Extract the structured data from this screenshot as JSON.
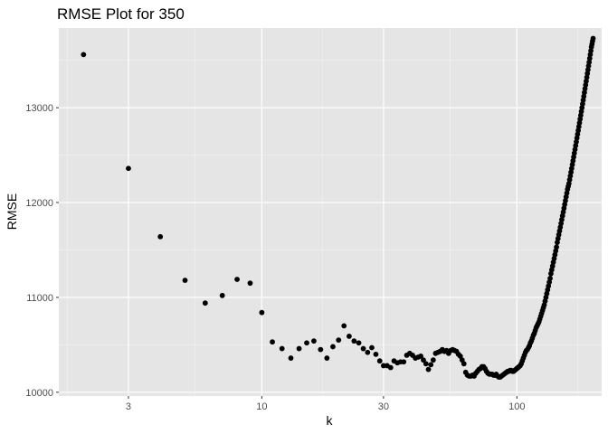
{
  "chart_data": {
    "type": "scatter",
    "title": "RMSE Plot for 350",
    "xlabel": "k",
    "ylabel": "RMSE",
    "x_scale": "log10",
    "xlim": [
      1.6,
      215
    ],
    "ylim": [
      9960,
      13840
    ],
    "x_ticks": [
      3,
      10,
      30,
      100
    ],
    "x_tick_labels": [
      "3",
      "10",
      "30",
      "100"
    ],
    "x_minor_ticks": [
      1.732,
      5.477,
      17.32,
      54.77,
      173.2
    ],
    "y_ticks": [
      10000,
      11000,
      12000,
      13000
    ],
    "y_tick_labels": [
      "10000",
      "11000",
      "12000",
      "13000"
    ],
    "y_minor_ticks": [
      10500,
      11500,
      12500,
      13500
    ],
    "grid": true,
    "background": "#e5e5e5",
    "point_color": "#000000",
    "points": [
      [
        2,
        13560
      ],
      [
        3,
        12360
      ],
      [
        4,
        11640
      ],
      [
        5,
        11180
      ],
      [
        6,
        10940
      ],
      [
        7,
        11020
      ],
      [
        8,
        11190
      ],
      [
        9,
        11150
      ],
      [
        10,
        10840
      ],
      [
        11,
        10530
      ],
      [
        12,
        10460
      ],
      [
        13,
        10360
      ],
      [
        14,
        10460
      ],
      [
        15,
        10520
      ],
      [
        16,
        10540
      ],
      [
        17,
        10450
      ],
      [
        18,
        10360
      ],
      [
        19,
        10480
      ],
      [
        20,
        10550
      ],
      [
        21,
        10700
      ],
      [
        22,
        10590
      ],
      [
        23,
        10540
      ],
      [
        24,
        10520
      ],
      [
        25,
        10460
      ],
      [
        26,
        10420
      ],
      [
        27,
        10470
      ],
      [
        28,
        10400
      ],
      [
        29,
        10330
      ],
      [
        30,
        10280
      ],
      [
        31,
        10280
      ],
      [
        32,
        10260
      ],
      [
        33,
        10330
      ],
      [
        34,
        10310
      ],
      [
        35,
        10320
      ],
      [
        36,
        10320
      ],
      [
        37,
        10390
      ],
      [
        38,
        10410
      ],
      [
        39,
        10390
      ],
      [
        40,
        10360
      ],
      [
        41,
        10370
      ],
      [
        42,
        10380
      ],
      [
        43,
        10340
      ],
      [
        44,
        10300
      ],
      [
        45,
        10240
      ],
      [
        46,
        10290
      ],
      [
        47,
        10340
      ],
      [
        48,
        10410
      ],
      [
        49,
        10420
      ],
      [
        50,
        10430
      ],
      [
        51,
        10450
      ],
      [
        52,
        10430
      ],
      [
        53,
        10440
      ],
      [
        54,
        10410
      ],
      [
        55,
        10440
      ],
      [
        56,
        10450
      ],
      [
        57,
        10440
      ],
      [
        58,
        10430
      ],
      [
        59,
        10400
      ],
      [
        60,
        10380
      ],
      [
        61,
        10340
      ],
      [
        62,
        10300
      ],
      [
        63,
        10210
      ],
      [
        64,
        10180
      ],
      [
        65,
        10170
      ],
      [
        66,
        10170
      ],
      [
        67,
        10180
      ],
      [
        68,
        10170
      ],
      [
        69,
        10200
      ],
      [
        70,
        10220
      ],
      [
        71,
        10240
      ],
      [
        72,
        10250
      ],
      [
        73,
        10270
      ],
      [
        74,
        10270
      ],
      [
        75,
        10250
      ],
      [
        76,
        10220
      ],
      [
        77,
        10200
      ],
      [
        78,
        10190
      ],
      [
        79,
        10190
      ],
      [
        80,
        10190
      ],
      [
        81,
        10180
      ],
      [
        82,
        10180
      ],
      [
        83,
        10190
      ],
      [
        84,
        10170
      ],
      [
        85,
        10160
      ],
      [
        86,
        10160
      ],
      [
        87,
        10170
      ],
      [
        88,
        10180
      ],
      [
        89,
        10190
      ],
      [
        90,
        10200
      ],
      [
        91,
        10210
      ],
      [
        92,
        10220
      ],
      [
        93,
        10220
      ],
      [
        94,
        10230
      ],
      [
        95,
        10230
      ],
      [
        96,
        10220
      ],
      [
        97,
        10220
      ],
      [
        98,
        10230
      ],
      [
        99,
        10240
      ],
      [
        100,
        10250
      ],
      [
        101,
        10260
      ],
      [
        102,
        10270
      ],
      [
        103,
        10280
      ],
      [
        104,
        10300
      ],
      [
        105,
        10330
      ],
      [
        106,
        10360
      ],
      [
        107,
        10390
      ],
      [
        108,
        10420
      ],
      [
        109,
        10440
      ],
      [
        110,
        10450
      ],
      [
        111,
        10470
      ],
      [
        112,
        10490
      ],
      [
        113,
        10520
      ],
      [
        114,
        10540
      ],
      [
        115,
        10570
      ],
      [
        116,
        10600
      ],
      [
        117,
        10620
      ],
      [
        118,
        10650
      ],
      [
        119,
        10680
      ],
      [
        120,
        10700
      ],
      [
        121,
        10720
      ],
      [
        122,
        10740
      ],
      [
        123,
        10770
      ],
      [
        124,
        10800
      ],
      [
        125,
        10830
      ],
      [
        126,
        10860
      ],
      [
        127,
        10890
      ],
      [
        128,
        10920
      ],
      [
        129,
        10960
      ],
      [
        130,
        11000
      ],
      [
        131,
        11040
      ],
      [
        132,
        11080
      ],
      [
        133,
        11120
      ],
      [
        134,
        11160
      ],
      [
        135,
        11200
      ],
      [
        136,
        11250
      ],
      [
        137,
        11290
      ],
      [
        138,
        11330
      ],
      [
        139,
        11370
      ],
      [
        140,
        11410
      ],
      [
        141,
        11450
      ],
      [
        142,
        11490
      ],
      [
        143,
        11530
      ],
      [
        144,
        11580
      ],
      [
        145,
        11620
      ],
      [
        146,
        11660
      ],
      [
        147,
        11700
      ],
      [
        148,
        11740
      ],
      [
        149,
        11780
      ],
      [
        150,
        11820
      ],
      [
        151,
        11860
      ],
      [
        152,
        11900
      ],
      [
        153,
        11940
      ],
      [
        154,
        11980
      ],
      [
        155,
        12020
      ],
      [
        156,
        12060
      ],
      [
        157,
        12100
      ],
      [
        158,
        12140
      ],
      [
        159,
        12170
      ],
      [
        160,
        12200
      ],
      [
        161,
        12240
      ],
      [
        162,
        12280
      ],
      [
        163,
        12320
      ],
      [
        164,
        12360
      ],
      [
        165,
        12400
      ],
      [
        166,
        12440
      ],
      [
        167,
        12480
      ],
      [
        168,
        12520
      ],
      [
        169,
        12560
      ],
      [
        170,
        12600
      ],
      [
        171,
        12640
      ],
      [
        172,
        12680
      ],
      [
        173,
        12720
      ],
      [
        174,
        12760
      ],
      [
        175,
        12800
      ],
      [
        176,
        12840
      ],
      [
        177,
        12880
      ],
      [
        178,
        12920
      ],
      [
        179,
        12960
      ],
      [
        180,
        13000
      ],
      [
        181,
        13040
      ],
      [
        182,
        13080
      ],
      [
        183,
        13120
      ],
      [
        184,
        13160
      ],
      [
        185,
        13200
      ],
      [
        186,
        13240
      ],
      [
        187,
        13280
      ],
      [
        188,
        13320
      ],
      [
        189,
        13360
      ],
      [
        190,
        13400
      ],
      [
        191,
        13440
      ],
      [
        192,
        13480
      ],
      [
        193,
        13520
      ],
      [
        194,
        13560
      ],
      [
        195,
        13600
      ],
      [
        196,
        13640
      ],
      [
        197,
        13670
      ],
      [
        198,
        13700
      ],
      [
        199,
        13730
      ]
    ]
  }
}
